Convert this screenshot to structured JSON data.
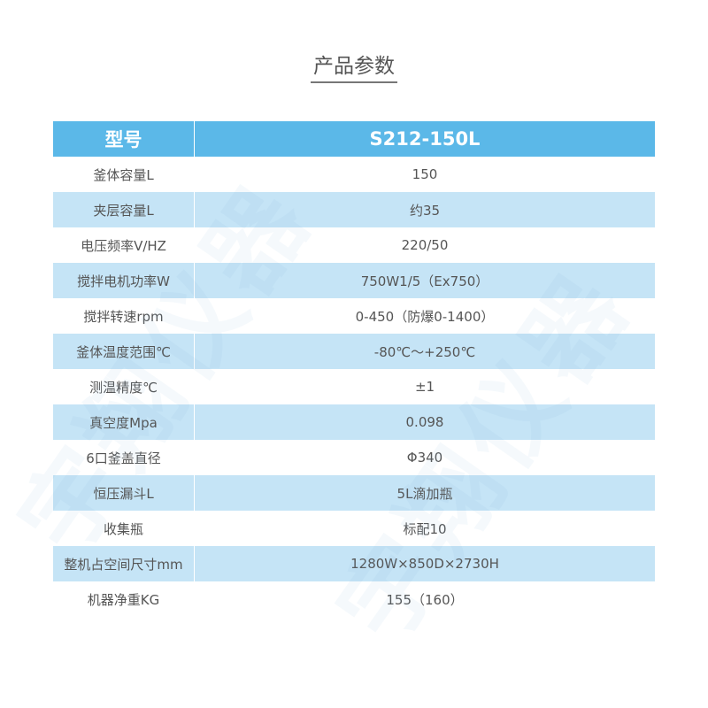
{
  "title": "产品参数",
  "watermark": "宇翔仪器",
  "colors": {
    "header": "#5bb8e8",
    "alt_row": "#c5e4f6"
  },
  "header": {
    "label": "型号",
    "value": "S212-150L"
  },
  "rows": [
    {
      "label": "釜体容量L",
      "value": "150"
    },
    {
      "label": "夹层容量L",
      "value": "约35"
    },
    {
      "label": "电压频率V/HZ",
      "value": "220/50"
    },
    {
      "label": "搅拌电机功率W",
      "value": "750W1/5（Ex750）"
    },
    {
      "label": "搅拌转速rpm",
      "value": "0-450（防爆0-1400）"
    },
    {
      "label": "釜体温度范围℃",
      "value": "-80℃～+250℃"
    },
    {
      "label": "测温精度℃",
      "value": "±1"
    },
    {
      "label": "真空度Mpa",
      "value": "0.098"
    },
    {
      "label": "6口釜盖直径",
      "value": "Φ340"
    },
    {
      "label": "恒压漏斗L",
      "value": "5L滴加瓶"
    },
    {
      "label": "收集瓶",
      "value": "标配10"
    },
    {
      "label": "整机占空间尺寸mm",
      "value": "1280W×850D×2730H"
    },
    {
      "label": "机器净重KG",
      "value": "155（160）"
    }
  ]
}
